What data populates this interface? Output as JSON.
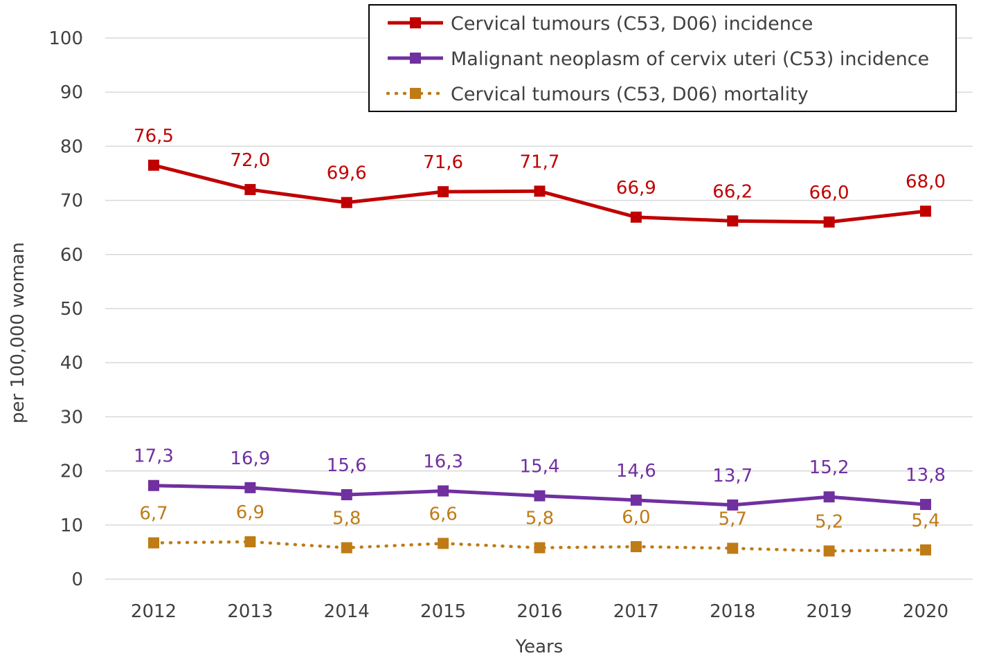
{
  "chart_data": {
    "type": "line",
    "title": "",
    "xlabel": "Years",
    "ylabel": "per 100,000 woman",
    "ylim": [
      0,
      100
    ],
    "yticks": [
      0,
      10,
      20,
      30,
      40,
      50,
      60,
      70,
      80,
      90,
      100
    ],
    "grid": true,
    "legend_position": "top-right",
    "categories": [
      "2012",
      "2013",
      "2014",
      "2015",
      "2016",
      "2017",
      "2018",
      "2019",
      "2020"
    ],
    "series": [
      {
        "name": "Cervical tumours (C53, D06) incidence",
        "color": "#C00000",
        "line_style": "solid",
        "marker": "square",
        "values": [
          76.5,
          72.0,
          69.6,
          71.6,
          71.7,
          66.9,
          66.2,
          66.0,
          68.0
        ],
        "labels": [
          "76,5",
          "72,0",
          "69,6",
          "71,6",
          "71,7",
          "66,9",
          "66,2",
          "66,0",
          "68,0"
        ]
      },
      {
        "name": "Malignant neoplasm of cervix uteri (C53) incidence",
        "color": "#7030A0",
        "line_style": "solid",
        "marker": "square",
        "values": [
          17.3,
          16.9,
          15.6,
          16.3,
          15.4,
          14.6,
          13.7,
          15.2,
          13.8
        ],
        "labels": [
          "17,3",
          "16,9",
          "15,6",
          "16,3",
          "15,4",
          "14,6",
          "13,7",
          "15,2",
          "13,8"
        ]
      },
      {
        "name": "Cervical tumours (C53, D06) mortality",
        "color": "#BF7B16",
        "line_style": "dotted",
        "marker": "square",
        "values": [
          6.7,
          6.9,
          5.8,
          6.6,
          5.8,
          6.0,
          5.7,
          5.2,
          5.4
        ],
        "labels": [
          "6,7",
          "6,9",
          "5,8",
          "6,6",
          "5,8",
          "6,0",
          "5,7",
          "5,2",
          "5,4"
        ]
      }
    ]
  }
}
